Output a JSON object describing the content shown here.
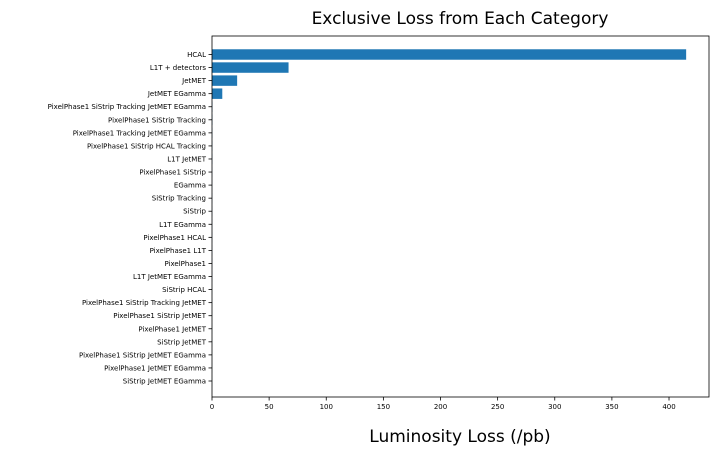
{
  "chart_data": {
    "type": "bar",
    "orientation": "horizontal",
    "title": "Exclusive Loss from Each Category",
    "xlabel": "Luminosity Loss (/pb)",
    "ylabel": "",
    "xlim": [
      0,
      435
    ],
    "xticks": [
      0,
      50,
      100,
      150,
      200,
      250,
      300,
      350,
      400
    ],
    "grid": false,
    "bar_color": "#1f77b4",
    "categories": [
      "HCAL",
      "L1T + detectors",
      "JetMET",
      "JetMET EGamma",
      "PixelPhase1 SiStrip Tracking JetMET EGamma",
      "PixelPhase1 SiStrip Tracking",
      "PixelPhase1 Tracking JetMET EGamma",
      "PixelPhase1 SiStrip HCAL Tracking",
      "L1T JetMET",
      "PixelPhase1 SiStrip",
      "EGamma",
      "SiStrip Tracking",
      "SiStrip",
      "L1T EGamma",
      "PixelPhase1 HCAL",
      "PixelPhase1 L1T",
      "PixelPhase1",
      "L1T JetMET EGamma",
      "SiStrip HCAL",
      "PixelPhase1 SiStrip Tracking JetMET",
      "PixelPhase1 SiStrip JetMET",
      "PixelPhase1 JetMET",
      "SiStrip JetMET",
      "PixelPhase1 SiStrip JetMET EGamma",
      "PixelPhase1 JetMET EGamma",
      "SiStrip JetMET EGamma"
    ],
    "values": [
      415,
      67,
      22,
      9,
      0.3,
      0.3,
      0.2,
      0.2,
      0.2,
      0.1,
      0.1,
      0.1,
      0.1,
      0.1,
      0.1,
      0.1,
      0.1,
      0.1,
      0.05,
      0.05,
      0.05,
      0.05,
      0.05,
      0.05,
      0.05,
      0.05
    ]
  }
}
